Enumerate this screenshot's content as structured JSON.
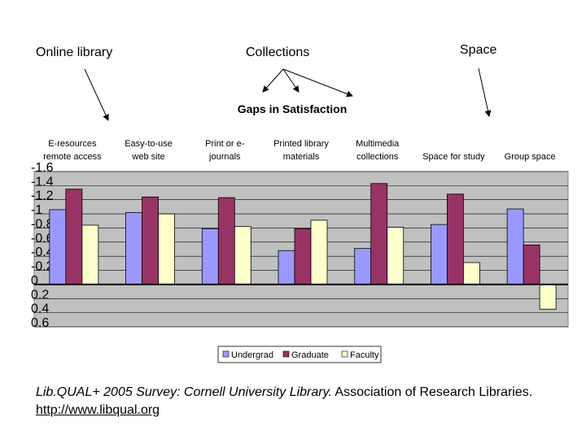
{
  "annotations": [
    "Online library",
    "Collections",
    "Space"
  ],
  "chart_data": {
    "type": "bar",
    "title": "Gaps in Satisfaction",
    "categories": [
      [
        "E-resources",
        "remote access"
      ],
      [
        "Easy-to-use",
        "web site"
      ],
      [
        "Print or e-",
        "journals"
      ],
      [
        "Printed library",
        "materials"
      ],
      [
        "Multimedia",
        "collections"
      ],
      [
        "Space for study"
      ],
      [
        "Group space"
      ]
    ],
    "series": [
      {
        "name": "Undergrad",
        "color": "#9999ff",
        "values": [
          -1.06,
          -1.02,
          -0.79,
          -0.48,
          -0.51,
          -0.85,
          -1.07
        ]
      },
      {
        "name": "Graduate",
        "color": "#993366",
        "values": [
          -1.35,
          -1.24,
          -1.23,
          -0.79,
          -1.43,
          -1.28,
          -0.56
        ]
      },
      {
        "name": "Faculty",
        "color": "#ffffcc",
        "values": [
          -0.84,
          -1.0,
          -0.82,
          -0.91,
          -0.81,
          -0.31,
          0.35
        ]
      }
    ],
    "ylim": [
      0.6,
      -1.6
    ],
    "yticks": [
      -1.6,
      -1.4,
      -1.2,
      -1,
      -0.8,
      -0.6,
      -0.4,
      -0.2,
      0,
      0.2,
      0.4,
      0.6
    ],
    "grid": true,
    "legend": "bottom"
  },
  "caption": {
    "source_title": "Lib.QUAL+ 2005 Survey: Cornell University Library.",
    "source_org": "Association of Research Libraries.",
    "url": "http://www.libqual.org"
  }
}
